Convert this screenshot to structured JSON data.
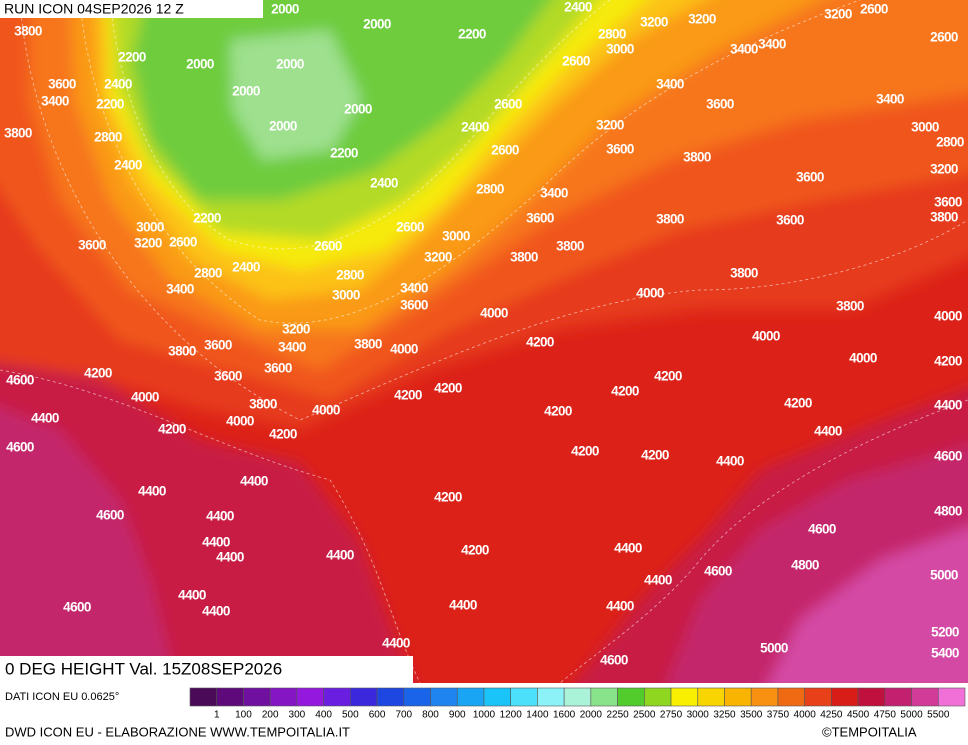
{
  "header": {
    "run": "RUN ICON 04SEP2026 12 Z",
    "field": "0 DEG HEIGHT Val. 15Z08SEP2026"
  },
  "footer": {
    "source": "DATI ICON EU 0.0625°",
    "credit": "DWD ICON EU - ELABORAZIONE WWW.TEMPOITALIA.IT",
    "copyright": "©TEMPOITALIA"
  },
  "legend": {
    "labels": [
      "1",
      "100",
      "200",
      "300",
      "400",
      "500",
      "600",
      "700",
      "800",
      "900",
      "1000",
      "1200",
      "1400",
      "1600",
      "2000",
      "2250",
      "2500",
      "2750",
      "3000",
      "3250",
      "3500",
      "3750",
      "4000",
      "4250",
      "4500",
      "4750",
      "5000",
      "5500"
    ],
    "colors": [
      "#4b0a57",
      "#5e0a7a",
      "#7010a0",
      "#8416c4",
      "#9418de",
      "#6a1ee0",
      "#3c28dc",
      "#1e46e0",
      "#1a64ea",
      "#2084f0",
      "#1aa4f4",
      "#1ac4f8",
      "#4ce0fa",
      "#8cf2f8",
      "#aaf2d8",
      "#88e38a",
      "#52cc2c",
      "#8ed620",
      "#f8f000",
      "#f8d400",
      "#f8b400",
      "#f89012",
      "#f06a14",
      "#e84018",
      "#d81c18",
      "#c0103e",
      "#c42070",
      "#d23c98",
      "#f070d8"
    ]
  },
  "contour_labels": [
    "3800",
    "2000",
    "2000",
    "2200",
    "2400",
    "2800",
    "3000",
    "3200",
    "3200",
    "3400",
    "3400",
    "3200",
    "2600",
    "2600",
    "2200",
    "2400",
    "2000",
    "2000",
    "2000",
    "3600",
    "3400",
    "2200",
    "2000",
    "2600",
    "3400",
    "2600",
    "3600",
    "3400",
    "3800",
    "2800",
    "2000",
    "2400",
    "3200",
    "3000",
    "2800",
    "2200",
    "2400",
    "2600",
    "3600",
    "3800",
    "3200",
    "2400",
    "2800",
    "3400",
    "3600",
    "3600",
    "3800",
    "3000",
    "3200",
    "2600",
    "2200",
    "3600",
    "2600",
    "3600",
    "3800",
    "3600",
    "3000",
    "2600",
    "3800",
    "3200",
    "3800",
    "2800",
    "2400",
    "2800",
    "3400",
    "3000",
    "3400",
    "3600",
    "4000",
    "3800",
    "3800",
    "4000",
    "4000",
    "3200",
    "3400",
    "3600",
    "3800",
    "3800",
    "4000",
    "4200",
    "4000",
    "4000",
    "4200",
    "4600",
    "4200",
    "3600",
    "3600",
    "4200",
    "4200",
    "4200",
    "4000",
    "3800",
    "4200",
    "4000",
    "4200",
    "4200",
    "4400",
    "4400",
    "4200",
    "4000",
    "4200",
    "4400",
    "4600",
    "4200",
    "4200",
    "4400",
    "4600",
    "4400",
    "4400",
    "4200",
    "4600",
    "4400",
    "4600",
    "4800",
    "4400",
    "4400",
    "4400",
    "4200",
    "4400",
    "4400",
    "4600",
    "4800",
    "5000",
    "4400",
    "4600",
    "4400",
    "4400",
    "4400",
    "5200",
    "5400",
    "4400",
    "5000",
    "4600"
  ]
}
